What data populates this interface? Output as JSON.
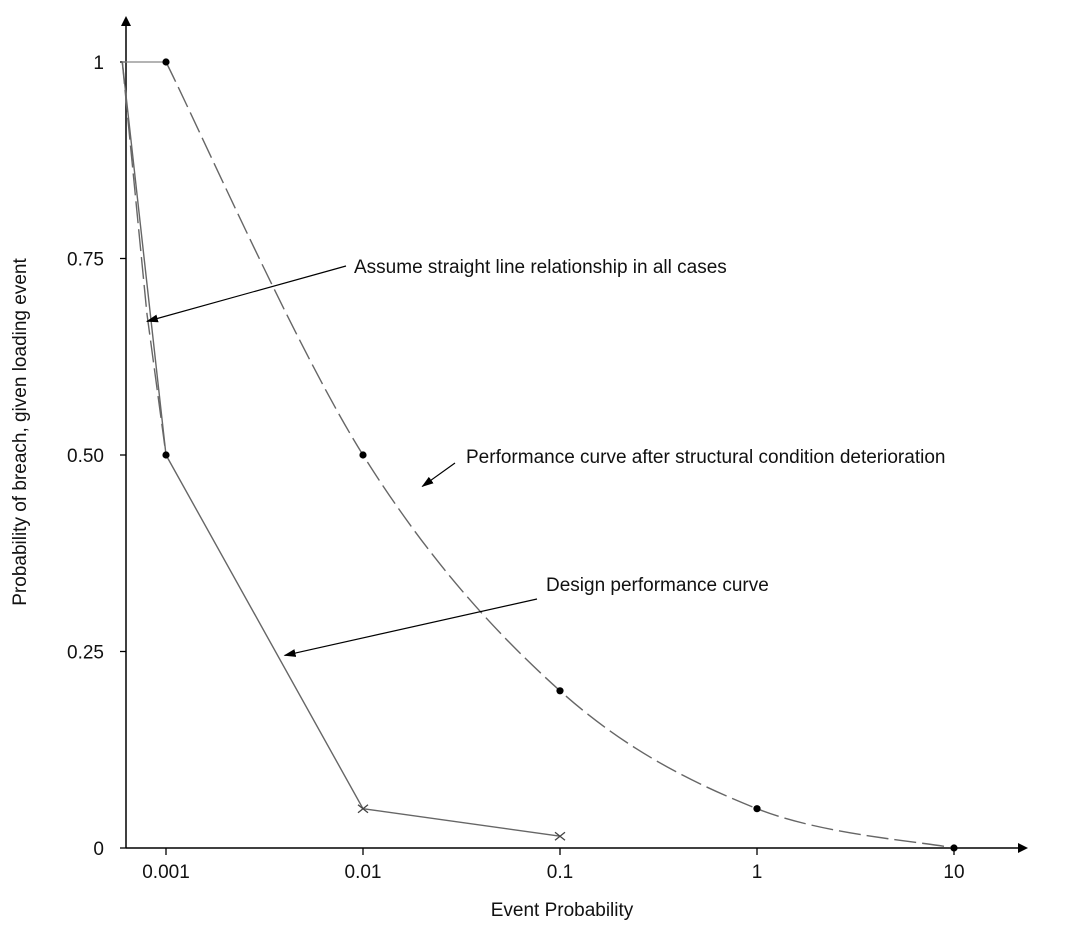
{
  "chart_data": {
    "type": "line",
    "xlabel": "Event Probability",
    "ylabel": "Probability of breach, given loading event",
    "x_scale": "log",
    "x_ticks": [
      0.001,
      0.01,
      0.1,
      1,
      10
    ],
    "x_tick_labels": [
      "0.001",
      "0.01",
      "0.1",
      "1",
      "10"
    ],
    "y_ticks": [
      0,
      0.25,
      0.5,
      0.75,
      1
    ],
    "y_tick_labels": [
      "0",
      "0.25",
      "0.50",
      "0.75",
      "1"
    ],
    "xlim": [
      0.0006,
      30
    ],
    "ylim": [
      0,
      1.05
    ],
    "grid": false,
    "legend": "none",
    "series": [
      {
        "line_style": "solid",
        "marker": "x",
        "color": "#666666",
        "points": [
          {
            "x": 0.0006,
            "y": 1.0,
            "marker": false
          },
          {
            "x": 0.001,
            "y": 0.5,
            "marker": true
          },
          {
            "x": 0.01,
            "y": 0.05,
            "marker": true
          },
          {
            "x": 0.1,
            "y": 0.015,
            "marker": true
          }
        ]
      },
      {
        "line_style": "dashed",
        "marker": "dot",
        "color": "#666666",
        "points": [
          {
            "x": 0.001,
            "y": 1.0,
            "marker": true
          },
          {
            "x": 0.01,
            "y": 0.5,
            "marker": true
          },
          {
            "x": 0.1,
            "y": 0.2,
            "marker": true
          },
          {
            "x": 1,
            "y": 0.05,
            "marker": true
          },
          {
            "x": 10,
            "y": 0.0,
            "marker": true
          }
        ]
      },
      {
        "line_style": "dashed",
        "marker": "none",
        "color": "#666666",
        "points": [
          {
            "x": 0.0006,
            "y": 1.0
          },
          {
            "x": 0.0008,
            "y": 0.68
          },
          {
            "x": 0.001,
            "y": 0.5
          }
        ]
      }
    ],
    "reference_segments": [
      {
        "from": {
          "x": 0.0006,
          "y": 1.0
        },
        "to": {
          "x": 0.001,
          "y": 1.0
        }
      }
    ],
    "annotations": [
      {
        "text": "Assume straight line relationship in all cases",
        "arrow_to": {
          "x": 0.0008,
          "y": 0.67
        }
      },
      {
        "text": "Performance curve after structural condition deterioration",
        "arrow_to": {
          "x": 0.02,
          "y": 0.46
        }
      },
      {
        "text": "Design performance curve",
        "arrow_to": {
          "x": 0.004,
          "y": 0.245
        }
      }
    ]
  }
}
